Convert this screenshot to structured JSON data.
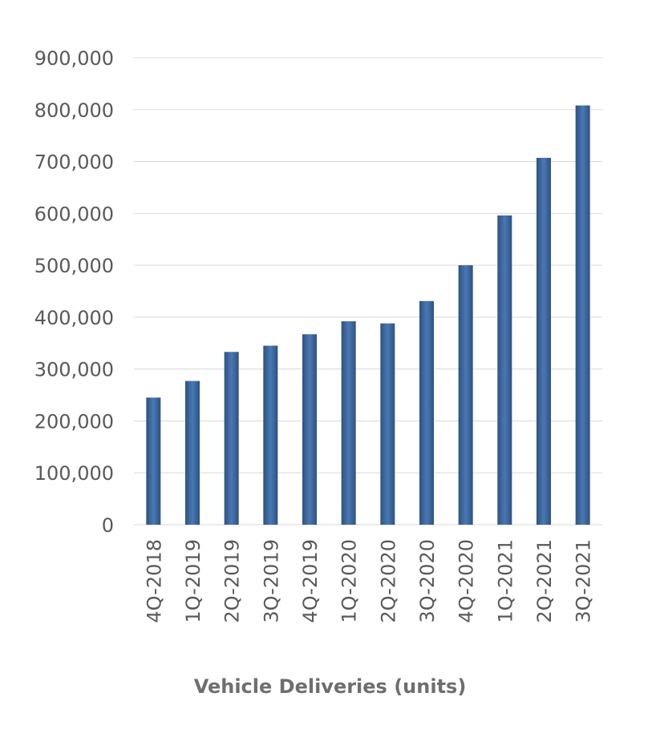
{
  "chart_data": {
    "type": "bar",
    "title": "",
    "xlabel": "Vehicle Deliveries (units)",
    "ylabel": "",
    "ylim": [
      0,
      900000
    ],
    "yticks": [
      0,
      100000,
      200000,
      300000,
      400000,
      500000,
      600000,
      700000,
      800000,
      900000
    ],
    "ytick_labels": [
      "0",
      "100,000",
      "200,000",
      "300,000",
      "400,000",
      "500,000",
      "600,000",
      "700,000",
      "800,000",
      "900,000"
    ],
    "categories": [
      "4Q-2018",
      "1Q-2019",
      "2Q-2019",
      "3Q-2019",
      "4Q-2019",
      "1Q-2020",
      "2Q-2020",
      "3Q-2020",
      "4Q-2020",
      "1Q-2021",
      "2Q-2021",
      "3Q-2021"
    ],
    "values": [
      245000,
      277000,
      333000,
      345000,
      367000,
      392000,
      388000,
      431000,
      500000,
      596000,
      707000,
      808000
    ],
    "grid": true,
    "legend": "none",
    "colors": {
      "bar_dark": "#2e5282",
      "bar_light": "#4a78b3",
      "grid": "#d9d9d9",
      "text": "#595959"
    }
  }
}
